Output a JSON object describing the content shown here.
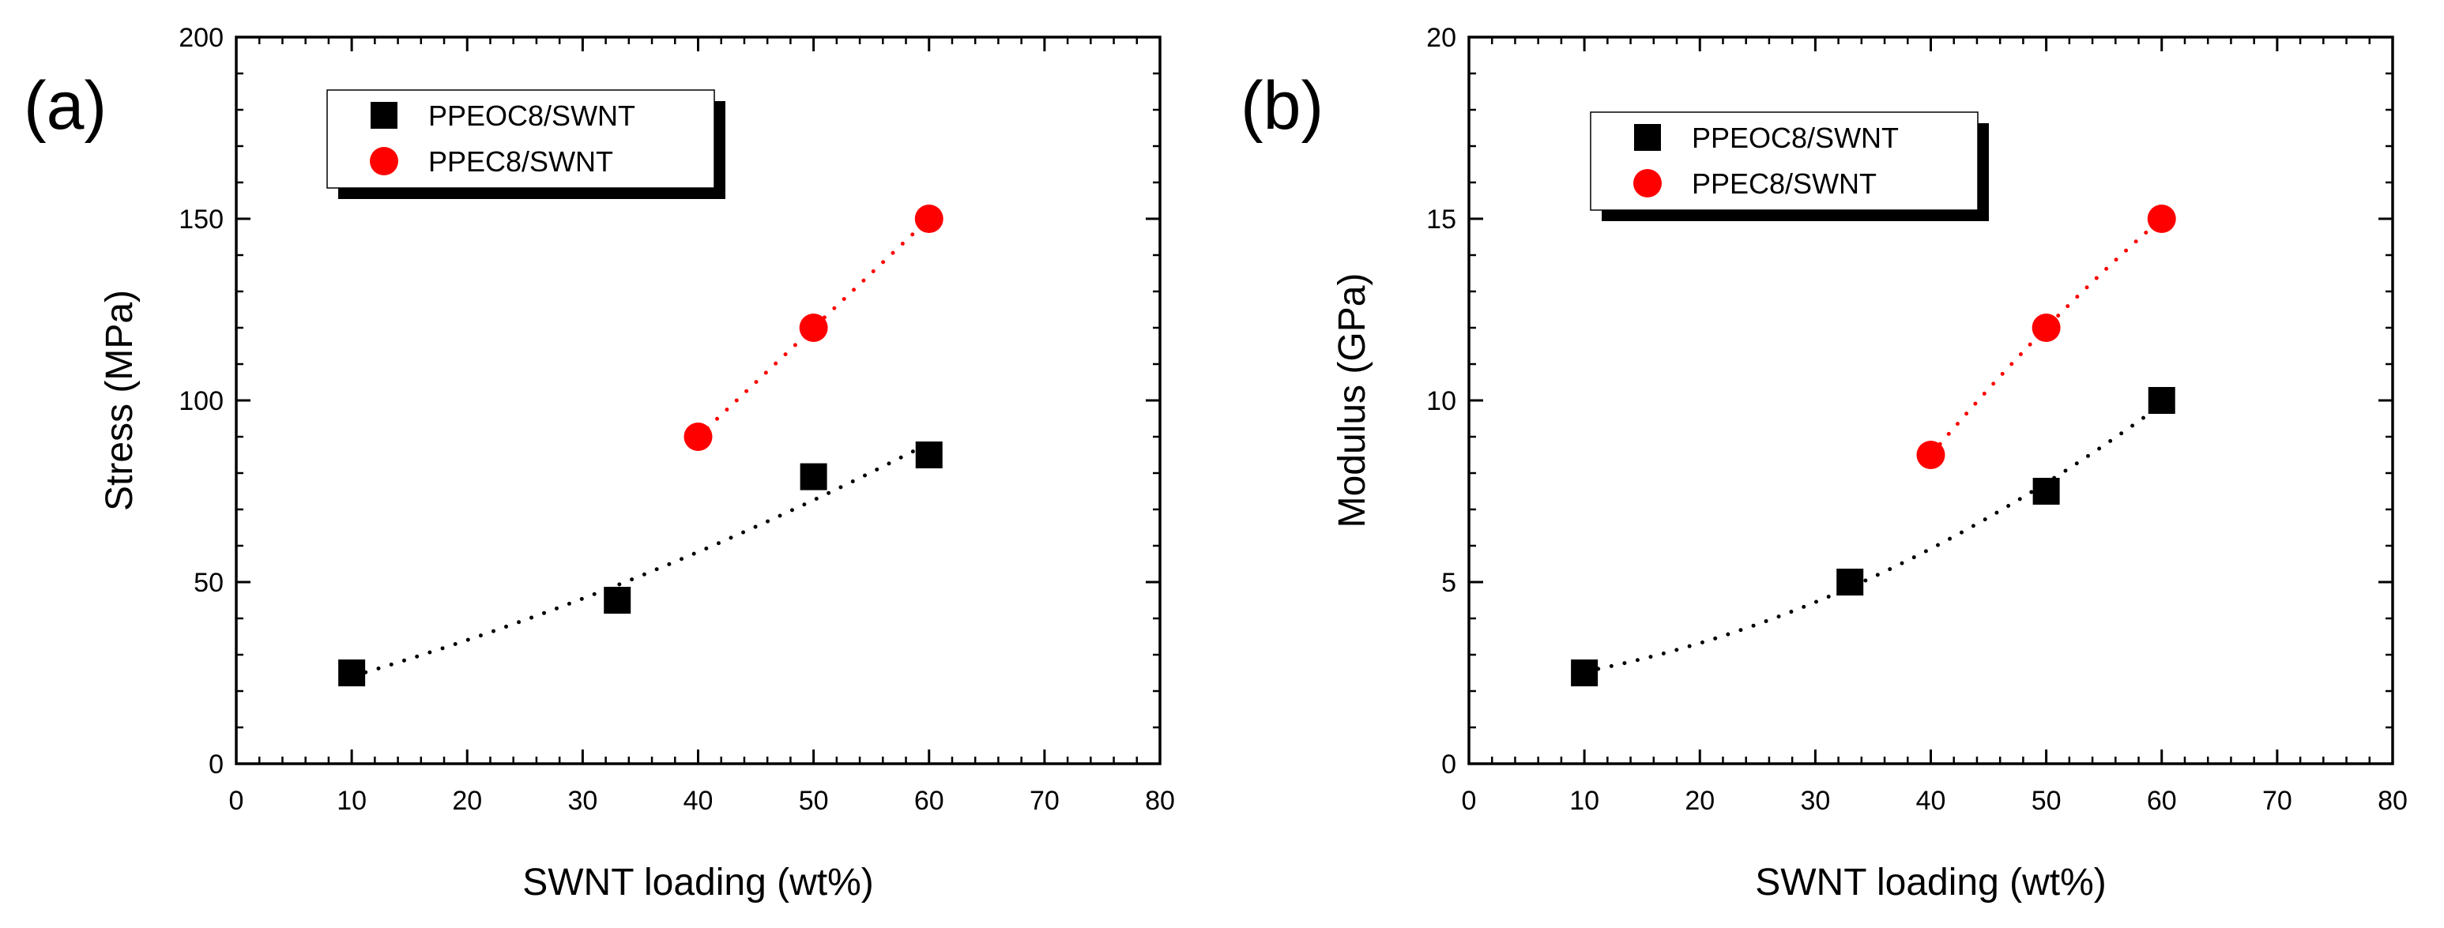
{
  "chart_data": [
    {
      "type": "scatter",
      "panel_label": "(a)",
      "xlabel": "SWNT loading (wt%)",
      "ylabel": "Stress (MPa)",
      "xlim": [
        0,
        80
      ],
      "ylim": [
        0,
        200
      ],
      "xticks": [
        0,
        10,
        20,
        30,
        40,
        50,
        60,
        70,
        80
      ],
      "yticks": [
        0,
        50,
        100,
        150,
        200
      ],
      "legend_position": "top-left",
      "series": [
        {
          "name": "PPEOC8/SWNT",
          "marker": "square",
          "color": "#000000",
          "x": [
            10,
            33,
            50,
            60
          ],
          "y": [
            25,
            45,
            79,
            85
          ]
        },
        {
          "name": "PPEC8/SWNT",
          "marker": "circle",
          "color": "#ff0000",
          "x": [
            40,
            50,
            60
          ],
          "y": [
            90,
            120,
            150
          ]
        }
      ]
    },
    {
      "type": "scatter",
      "panel_label": "(b)",
      "xlabel": "SWNT loading (wt%)",
      "ylabel": "Modulus (GPa)",
      "xlim": [
        0,
        80
      ],
      "ylim": [
        0,
        20
      ],
      "xticks": [
        0,
        10,
        20,
        30,
        40,
        50,
        60,
        70,
        80
      ],
      "yticks": [
        0,
        5,
        10,
        15,
        20
      ],
      "legend_position": "top-left",
      "series": [
        {
          "name": "PPEOC8/SWNT",
          "marker": "square",
          "color": "#000000",
          "x": [
            10,
            33,
            50,
            60
          ],
          "y": [
            2.5,
            5,
            7.5,
            10
          ]
        },
        {
          "name": "PPEC8/SWNT",
          "marker": "circle",
          "color": "#ff0000",
          "x": [
            40,
            50,
            60
          ],
          "y": [
            8.5,
            12,
            15
          ]
        }
      ]
    }
  ]
}
